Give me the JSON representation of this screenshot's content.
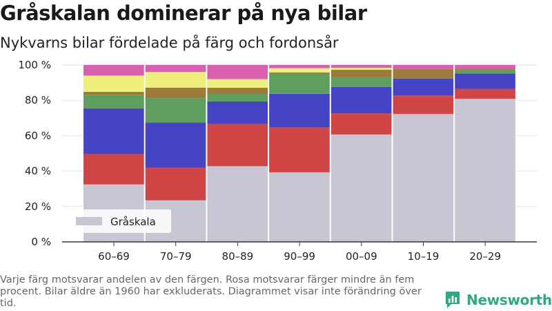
{
  "header": {
    "title": "Gråskalan dominerar på nya bilar",
    "subtitle": "Nykvarns bilar fördelade på färg och fordonsår"
  },
  "footnote": "Varje färg motsvarar andelen av den färgen. Rosa motsvarar färger mindre än fem procent. Bilar äldre än 1960 har exkluderats. Diagrammet visar inte förändring över tid.",
  "brand": {
    "name": "Newsworthy",
    "icon": "newsworthy-logo-icon",
    "color": "#31a885"
  },
  "chart_data": {
    "type": "bar",
    "stacked": true,
    "categories": [
      "60–69",
      "70–79",
      "80–89",
      "90–99",
      "00–09",
      "10–19",
      "20–29"
    ],
    "ylim": [
      0,
      100
    ],
    "yticks": [
      0,
      20,
      40,
      60,
      80,
      100
    ],
    "ytick_labels": [
      "0 %",
      "20 %",
      "40 %",
      "60 %",
      "80 %",
      "100 %"
    ],
    "grid": true,
    "legend": {
      "placement": "bottom-left",
      "entries": [
        "Gråskala"
      ]
    },
    "series": [
      {
        "name": "Gråskala",
        "color": "#c8c6d3",
        "values": [
          32.5,
          23.5,
          42.8,
          39.3,
          60.7,
          72.3,
          80.9
        ]
      },
      {
        "color": "#d04545",
        "values": [
          17.3,
          18.5,
          24.0,
          25.4,
          11.9,
          10.4,
          5.6
        ]
      },
      {
        "color": "#4444c4",
        "values": [
          25.7,
          25.5,
          12.5,
          19.0,
          15.0,
          9.6,
          8.6
        ]
      },
      {
        "color": "#5e9e5e",
        "values": [
          7.6,
          13.7,
          4.3,
          11.4,
          5.4,
          0,
          2.2
        ]
      },
      {
        "color": "#9c7a3a",
        "values": [
          1.7,
          6.0,
          3.5,
          0.7,
          4.3,
          5.3,
          0.7
        ]
      },
      {
        "color": "#eeee7c",
        "values": [
          9.2,
          8.8,
          4.9,
          2.4,
          1.1,
          0,
          0
        ]
      },
      {
        "color": "#d95fb0",
        "values": [
          6.0,
          4.0,
          8.0,
          1.8,
          1.6,
          2.4,
          2.0
        ]
      }
    ]
  }
}
